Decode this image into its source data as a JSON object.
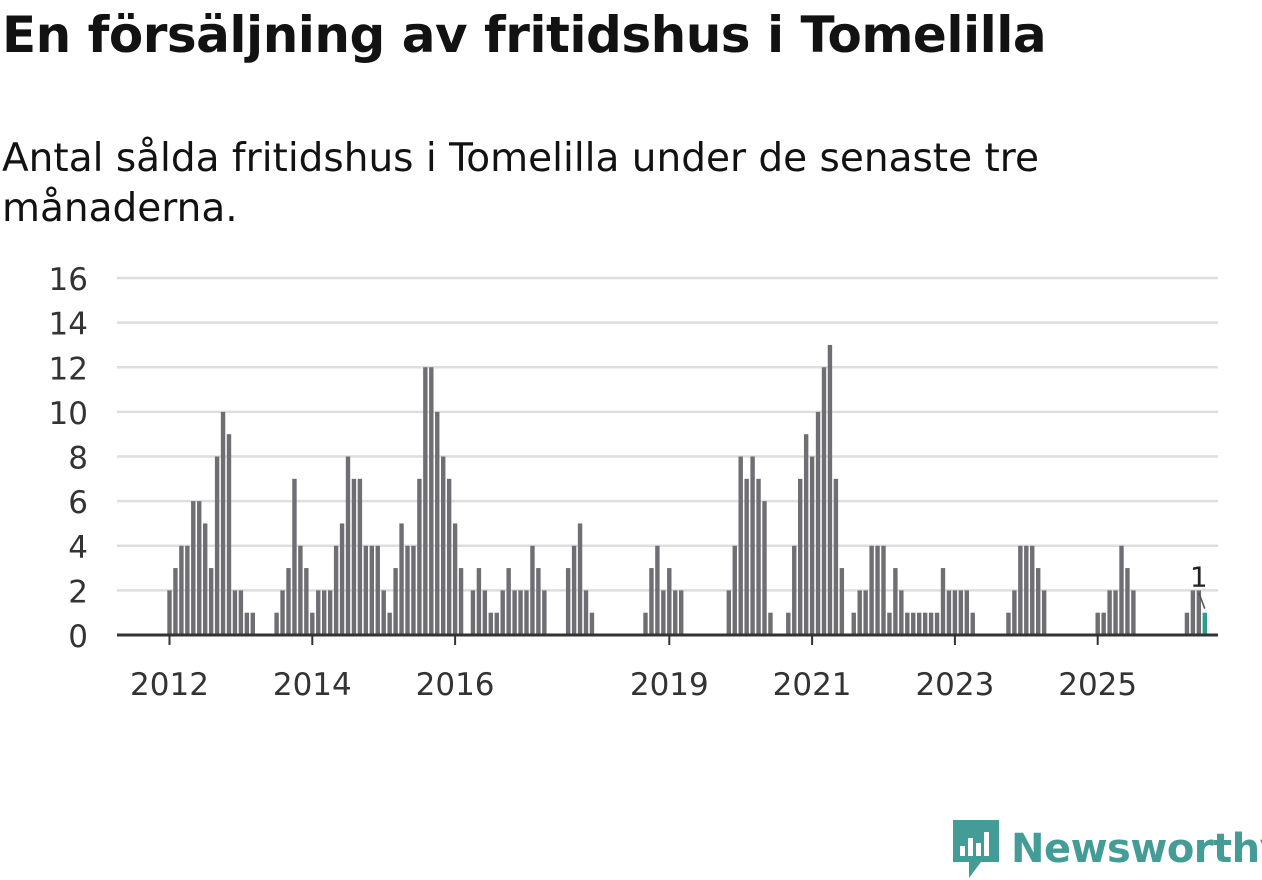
{
  "title": "En försäljning av fritidshus i Tomelilla",
  "subtitle": "Antal sålda fritidshus i Tomelilla under de senaste tre månaderna.",
  "brand": {
    "name": "Newsworthy",
    "color": "#449C96"
  },
  "chart_data": {
    "type": "bar",
    "title": "En försäljning av fritidshus i Tomelilla",
    "subtitle": "Antal sålda fritidshus i Tomelilla under de senaste tre månaderna.",
    "xlabel": "",
    "ylabel": "",
    "ylim": [
      0,
      16
    ],
    "yticks": [
      0,
      2,
      4,
      6,
      8,
      10,
      12,
      14,
      16
    ],
    "xticks": [
      "2012",
      "2014",
      "2016",
      "2019",
      "2021",
      "2023",
      "2025"
    ],
    "x_start": "2012-01",
    "x_unit": "month",
    "bar_color": "#6e6e73",
    "highlight_color": "#2a9d8f",
    "grid": true,
    "values": [
      2,
      3,
      4,
      4,
      6,
      6,
      5,
      3,
      8,
      10,
      9,
      2,
      2,
      1,
      1,
      0,
      0,
      0,
      1,
      2,
      3,
      7,
      4,
      3,
      1,
      2,
      2,
      2,
      4,
      5,
      8,
      7,
      7,
      4,
      4,
      4,
      2,
      1,
      3,
      5,
      4,
      4,
      7,
      12,
      12,
      10,
      8,
      7,
      5,
      3,
      0,
      2,
      3,
      2,
      1,
      1,
      2,
      3,
      2,
      2,
      2,
      4,
      3,
      2,
      0,
      0,
      0,
      3,
      4,
      5,
      2,
      1,
      0,
      0,
      0,
      0,
      0,
      0,
      0,
      0,
      1,
      3,
      4,
      2,
      3,
      2,
      2,
      0,
      0,
      0,
      0,
      0,
      0,
      0,
      2,
      4,
      8,
      7,
      8,
      7,
      6,
      1,
      0,
      0,
      1,
      4,
      7,
      9,
      8,
      10,
      12,
      13,
      7,
      3,
      0,
      1,
      2,
      2,
      4,
      4,
      4,
      1,
      3,
      2,
      1,
      1,
      1,
      1,
      1,
      1,
      3,
      2,
      2,
      2,
      2,
      1,
      0,
      0,
      0,
      0,
      0,
      1,
      2,
      4,
      4,
      4,
      3,
      2,
      0,
      0,
      0,
      0,
      0,
      0,
      0,
      0,
      1,
      1,
      2,
      2,
      4,
      3,
      2,
      0,
      0,
      0,
      0,
      0,
      0,
      0,
      0,
      1,
      2,
      2,
      1
    ],
    "highlight": {
      "value": 1,
      "label": "1"
    }
  }
}
